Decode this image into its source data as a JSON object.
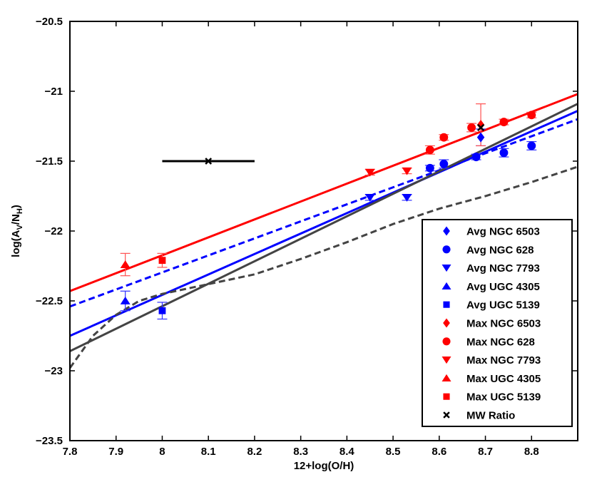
{
  "chart_data": {
    "type": "scatter",
    "xlabel": "12+log(O/H)",
    "ylabel": {
      "base": "log(A",
      "sub1": "V",
      "mid": "/N",
      "sub2": "H",
      "end": ")"
    },
    "xlim": [
      7.8,
      8.9
    ],
    "ylim": [
      -23.5,
      -20.5
    ],
    "xticks": [
      7.8,
      7.9,
      8,
      8.1,
      8.2,
      8.3,
      8.4,
      8.5,
      8.6,
      8.7,
      8.8
    ],
    "xtick_labels": [
      "7.8",
      "7.9",
      "8",
      "8.1",
      "8.2",
      "8.3",
      "8.4",
      "8.5",
      "8.6",
      "8.7",
      "8.8"
    ],
    "yticks": [
      -23.5,
      -23,
      -22.5,
      -22,
      -21.5,
      -21,
      -20.5
    ],
    "ytick_labels": [
      "−23.5",
      "−23",
      "−22.5",
      "−22",
      "−21.5",
      "−21",
      "−20.5"
    ],
    "grid": false,
    "legend_position": "bottom-right",
    "colors": {
      "blue": "#0000ff",
      "red": "#ff0000",
      "black": "#000000",
      "gray": "#444444",
      "errRed": "#ff5050",
      "errBlue": "#3030ff"
    },
    "series": [
      {
        "name": "Avg NGC 6503",
        "marker": "diamond",
        "color": "#0000ff",
        "points": [
          [
            8.69,
            -21.33,
            0.06
          ]
        ]
      },
      {
        "name": "Avg NGC 628",
        "marker": "circle",
        "color": "#0000ff",
        "points": [
          [
            8.58,
            -21.55,
            0.02
          ],
          [
            8.61,
            -21.52,
            0.03
          ],
          [
            8.68,
            -21.47,
            0.02
          ],
          [
            8.74,
            -21.44,
            0.03
          ],
          [
            8.8,
            -21.39,
            0.03
          ]
        ]
      },
      {
        "name": "Avg NGC 7793",
        "marker": "triangle-down",
        "color": "#0000ff",
        "points": [
          [
            8.45,
            -21.76,
            0.02
          ],
          [
            8.53,
            -21.76,
            0.02
          ]
        ]
      },
      {
        "name": "Avg UGC 4305",
        "marker": "triangle-up",
        "color": "#0000ff",
        "points": [
          [
            7.92,
            -22.5,
            0.07
          ]
        ]
      },
      {
        "name": "Avg UGC 5139",
        "marker": "square",
        "color": "#0000ff",
        "points": [
          [
            8.0,
            -22.57,
            0.06
          ]
        ]
      },
      {
        "name": "Max NGC 6503",
        "marker": "diamond",
        "color": "#ff0000",
        "points": [
          [
            8.69,
            -21.24,
            0.15
          ]
        ]
      },
      {
        "name": "Max NGC 628",
        "marker": "circle",
        "color": "#ff0000",
        "points": [
          [
            8.58,
            -21.42,
            0.03
          ],
          [
            8.61,
            -21.33,
            0.02
          ],
          [
            8.67,
            -21.26,
            0.03
          ],
          [
            8.74,
            -21.22,
            0.02
          ],
          [
            8.8,
            -21.17,
            0.02
          ]
        ]
      },
      {
        "name": "Max NGC 7793",
        "marker": "triangle-down",
        "color": "#ff0000",
        "points": [
          [
            8.45,
            -21.58,
            0.02
          ],
          [
            8.53,
            -21.57,
            0.02
          ]
        ]
      },
      {
        "name": "Max UGC 4305",
        "marker": "triangle-up",
        "color": "#ff0000",
        "points": [
          [
            7.92,
            -22.24,
            0.08
          ]
        ]
      },
      {
        "name": "Max UGC 5139",
        "marker": "square",
        "color": "#ff0000",
        "points": [
          [
            8.0,
            -22.21,
            0.05
          ]
        ]
      },
      {
        "name": "MW Ratio",
        "marker": "x",
        "color": "#000000",
        "points": [
          [
            8.69,
            -21.26,
            0.02
          ]
        ]
      }
    ],
    "mw_hbar": {
      "x": 8.1,
      "y": -21.5,
      "xerr": 0.1
    },
    "lines": [
      {
        "color": "#ff0000",
        "dash": "solid",
        "x": [
          7.8,
          8.9
        ],
        "y": [
          -22.43,
          -21.02
        ]
      },
      {
        "color": "#0000ff",
        "dash": "solid",
        "x": [
          7.8,
          8.9
        ],
        "y": [
          -22.75,
          -21.14
        ]
      },
      {
        "color": "#0000ff",
        "dash": "dashed",
        "x": [
          7.8,
          8.9
        ],
        "y": [
          -22.54,
          -21.2
        ]
      },
      {
        "color": "#444444",
        "dash": "solid",
        "x": [
          7.8,
          8.9
        ],
        "y": [
          -22.86,
          -21.09
        ]
      },
      {
        "color": "#444444",
        "dash": "dashed",
        "x": [
          7.8,
          7.85,
          7.9,
          7.95,
          8.0,
          8.1,
          8.2,
          8.3,
          8.4,
          8.5,
          8.6,
          8.7,
          8.8,
          8.9
        ],
        "y": [
          -22.98,
          -22.75,
          -22.6,
          -22.5,
          -22.45,
          -22.38,
          -22.31,
          -22.2,
          -22.08,
          -21.95,
          -21.84,
          -21.75,
          -21.65,
          -21.54
        ]
      }
    ]
  }
}
